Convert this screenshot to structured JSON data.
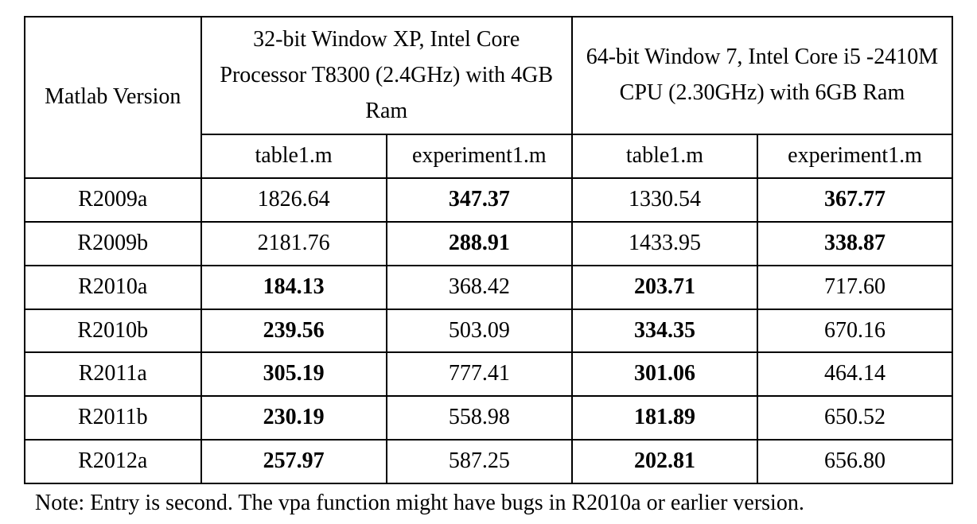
{
  "table": {
    "type": "table",
    "background_color": "#ffffff",
    "border_color": "#000000",
    "font_family": "Times New Roman",
    "font_size_pt": 21,
    "row_header_label": "Matlab Version",
    "system1_label": "32-bit Window XP, Intel Core Processor T8300 (2.4GHz) with 4GB Ram",
    "system2_label": "64-bit Window 7, Intel Core i5 -2410M CPU (2.30GHz) with 6GB Ram",
    "sub_columns": [
      "table1.m",
      "experiment1.m",
      "table1.m",
      "experiment1.m"
    ],
    "column_widths_pct": [
      19,
      20,
      20,
      20,
      21
    ],
    "rows": [
      {
        "version": "R2009a",
        "cells": [
          {
            "value": "1826.64",
            "bold": false
          },
          {
            "value": "347.37",
            "bold": true
          },
          {
            "value": "1330.54",
            "bold": false
          },
          {
            "value": "367.77",
            "bold": true
          }
        ]
      },
      {
        "version": "R2009b",
        "cells": [
          {
            "value": "2181.76",
            "bold": false
          },
          {
            "value": "288.91",
            "bold": true
          },
          {
            "value": "1433.95",
            "bold": false
          },
          {
            "value": "338.87",
            "bold": true
          }
        ]
      },
      {
        "version": "R2010a",
        "cells": [
          {
            "value": "184.13",
            "bold": true
          },
          {
            "value": "368.42",
            "bold": false
          },
          {
            "value": "203.71",
            "bold": true
          },
          {
            "value": "717.60",
            "bold": false
          }
        ]
      },
      {
        "version": "R2010b",
        "cells": [
          {
            "value": "239.56",
            "bold": true
          },
          {
            "value": "503.09",
            "bold": false
          },
          {
            "value": "334.35",
            "bold": true
          },
          {
            "value": "670.16",
            "bold": false
          }
        ]
      },
      {
        "version": "R2011a",
        "cells": [
          {
            "value": "305.19",
            "bold": true
          },
          {
            "value": "777.41",
            "bold": false
          },
          {
            "value": "301.06",
            "bold": true
          },
          {
            "value": "464.14",
            "bold": false
          }
        ]
      },
      {
        "version": "R2011b",
        "cells": [
          {
            "value": "230.19",
            "bold": true
          },
          {
            "value": "558.98",
            "bold": false
          },
          {
            "value": "181.89",
            "bold": true
          },
          {
            "value": "650.52",
            "bold": false
          }
        ]
      },
      {
        "version": "R2012a",
        "cells": [
          {
            "value": "257.97",
            "bold": true
          },
          {
            "value": "587.25",
            "bold": false
          },
          {
            "value": "202.81",
            "bold": true
          },
          {
            "value": "656.80",
            "bold": false
          }
        ]
      }
    ],
    "note": "Note: Entry is second. The vpa function might have bugs in R2010a or earlier version."
  }
}
